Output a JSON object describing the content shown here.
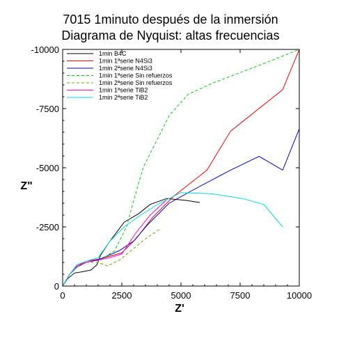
{
  "chart_data": {
    "type": "line",
    "title_line1": "7015 1minuto después de la inmersión",
    "title_line2": "Diagrama de Nyquist: altas frecuencias",
    "xlabel": "Z'",
    "ylabel": "Z\"",
    "xlim": [
      0,
      10000
    ],
    "ylim": [
      0,
      -10000
    ],
    "x_ticks": [
      {
        "value": 0,
        "label": "0"
      },
      {
        "value": 2500,
        "label": "2500"
      },
      {
        "value": 5000,
        "label": "5000"
      },
      {
        "value": 7500,
        "label": "7500"
      },
      {
        "value": 10000,
        "label": "10000"
      }
    ],
    "y_ticks": [
      {
        "value": 0,
        "label": "0"
      },
      {
        "value": -2500,
        "label": "-2500"
      },
      {
        "value": -5000,
        "label": "-5000"
      },
      {
        "value": -7500,
        "label": "-7500"
      },
      {
        "value": -10000,
        "label": "-10000"
      }
    ],
    "grid": false,
    "legend_position": "top-left",
    "series": [
      {
        "name": "1min B4C",
        "color": "#000000",
        "dash": "solid",
        "x": [
          0,
          200,
          500,
          800,
          1200,
          1450,
          1600,
          2000,
          2600,
          3200,
          3700,
          4400,
          5200,
          5800
        ],
        "y": [
          0,
          -300,
          -550,
          -600,
          -680,
          -900,
          -1300,
          -1900,
          -2700,
          -3050,
          -3450,
          -3700,
          -3620,
          -3530
        ]
      },
      {
        "name": "1min 1ªserie N4Si3",
        "color": "#ff0000",
        "dash": "solid",
        "x": [
          0,
          300,
          600,
          1000,
          1600,
          2500,
          3100,
          3800,
          4700,
          6100,
          7100,
          9300,
          10000
        ],
        "y": [
          0,
          -500,
          -850,
          -1050,
          -1150,
          -1400,
          -2000,
          -2900,
          -3800,
          -4900,
          -6550,
          -8300,
          -10000
        ]
      },
      {
        "name": "1min 2ªserie N4Si3",
        "color": "#0000cc",
        "dash": "solid",
        "x": [
          0,
          300,
          600,
          1000,
          1600,
          2400,
          3000,
          3600,
          4500,
          5400,
          7000,
          8300,
          9300,
          10000
        ],
        "y": [
          0,
          -500,
          -800,
          -1000,
          -1150,
          -1500,
          -1900,
          -2600,
          -3500,
          -4000,
          -4850,
          -5480,
          -4900,
          -6650
        ]
      },
      {
        "name": "1min 1ªserie Sin refuerzos",
        "color": "#00cc00",
        "dash": "dashed",
        "x": [
          0,
          300,
          600,
          1000,
          1600,
          2200,
          2700,
          3000,
          3400,
          3800,
          4500,
          5300,
          6400,
          8500,
          10000
        ],
        "y": [
          0,
          -500,
          -800,
          -1000,
          -1100,
          -1500,
          -2500,
          -3600,
          -5000,
          -5800,
          -7200,
          -8100,
          -8600,
          -9400,
          -10000
        ]
      },
      {
        "name": "1min 2ªserie Sin refuerzos",
        "color": "#66aa00",
        "dash": "dashed",
        "x": [
          0,
          300,
          600,
          1000,
          1500,
          1900,
          2400,
          2900,
          3500,
          4100
        ],
        "y": [
          0,
          -500,
          -800,
          -1000,
          -1000,
          -850,
          -1100,
          -1500,
          -2000,
          -2400
        ]
      },
      {
        "name": "1min 1ªserie TiB2",
        "color": "#ff00ff",
        "dash": "solid",
        "x": [
          0,
          300,
          600,
          1000,
          1500,
          2000,
          2500,
          3100,
          3700,
          4400
        ],
        "y": [
          0,
          -500,
          -850,
          -1000,
          -1100,
          -1200,
          -1350,
          -2250,
          -3000,
          -3650
        ]
      },
      {
        "name": "1min 2ªserie TiB2",
        "color": "#00dddd",
        "dash": "solid",
        "x": [
          0,
          300,
          600,
          1000,
          1500,
          2000,
          2600,
          3300,
          4100,
          5000,
          6300,
          7600,
          8500,
          9300
        ],
        "y": [
          0,
          -500,
          -900,
          -1050,
          -1200,
          -1900,
          -2500,
          -3000,
          -3500,
          -3950,
          -3900,
          -3700,
          -3450,
          -2500
        ]
      }
    ]
  }
}
